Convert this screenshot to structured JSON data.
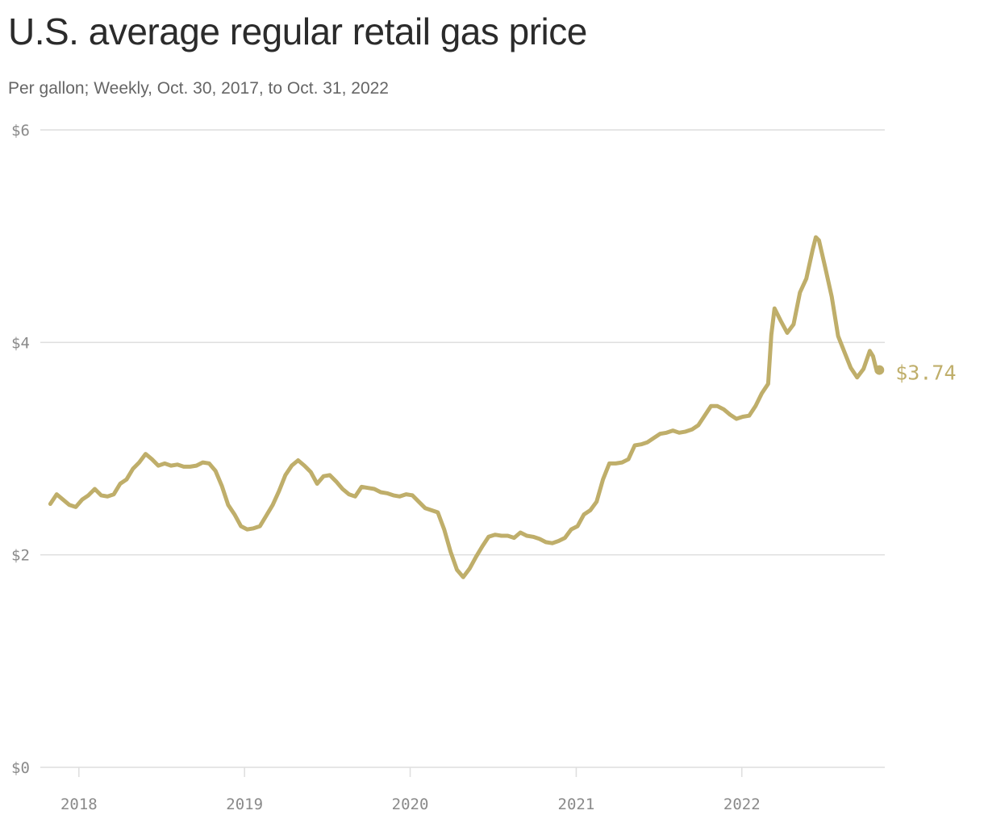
{
  "colors": {
    "line": "#bfae6a",
    "grid": "#dedede",
    "axis_text": "#8a8a8a"
  },
  "chart_data": {
    "type": "line",
    "title": "U.S. average regular retail gas price",
    "subtitle": "Per gallon; Weekly, Oct. 30, 2017, to Oct. 31, 2022",
    "xlabel": "",
    "ylabel": "",
    "ylim": [
      0,
      6
    ],
    "y_ticks": [
      0,
      2,
      4,
      6
    ],
    "y_tick_labels": [
      "$0",
      "$2",
      "$4",
      "$6"
    ],
    "x_ticks": [
      "2018-01-01",
      "2019-01-01",
      "2020-01-01",
      "2021-01-01",
      "2022-01-01"
    ],
    "x_tick_labels": [
      "2018",
      "2019",
      "2020",
      "2021",
      "2022"
    ],
    "xlim": [
      "2017-10-30",
      "2022-10-31"
    ],
    "grid": true,
    "end_label": "$3.74",
    "series": [
      {
        "name": "",
        "x": [
          "2017-10-30",
          "2017-11-13",
          "2017-11-27",
          "2017-12-11",
          "2017-12-25",
          "2018-01-08",
          "2018-01-22",
          "2018-02-05",
          "2018-02-19",
          "2018-03-05",
          "2018-03-19",
          "2018-04-02",
          "2018-04-16",
          "2018-04-30",
          "2018-05-14",
          "2018-05-28",
          "2018-06-11",
          "2018-06-25",
          "2018-07-09",
          "2018-07-23",
          "2018-08-06",
          "2018-08-20",
          "2018-09-03",
          "2018-09-17",
          "2018-10-01",
          "2018-10-15",
          "2018-10-29",
          "2018-11-12",
          "2018-11-26",
          "2018-12-10",
          "2018-12-24",
          "2019-01-07",
          "2019-01-21",
          "2019-02-04",
          "2019-02-18",
          "2019-03-04",
          "2019-03-18",
          "2019-04-01",
          "2019-04-15",
          "2019-04-29",
          "2019-05-13",
          "2019-05-27",
          "2019-06-10",
          "2019-06-24",
          "2019-07-08",
          "2019-07-22",
          "2019-08-05",
          "2019-08-19",
          "2019-09-02",
          "2019-09-16",
          "2019-09-30",
          "2019-10-14",
          "2019-10-28",
          "2019-11-11",
          "2019-11-25",
          "2019-12-09",
          "2019-12-23",
          "2020-01-06",
          "2020-01-20",
          "2020-02-03",
          "2020-02-17",
          "2020-03-02",
          "2020-03-16",
          "2020-03-30",
          "2020-04-13",
          "2020-04-27",
          "2020-05-11",
          "2020-05-25",
          "2020-06-08",
          "2020-06-22",
          "2020-07-06",
          "2020-07-20",
          "2020-08-03",
          "2020-08-17",
          "2020-08-31",
          "2020-09-14",
          "2020-09-28",
          "2020-10-12",
          "2020-10-26",
          "2020-11-09",
          "2020-11-23",
          "2020-12-07",
          "2020-12-21",
          "2021-01-04",
          "2021-01-18",
          "2021-02-01",
          "2021-02-15",
          "2021-03-01",
          "2021-03-15",
          "2021-03-29",
          "2021-04-12",
          "2021-04-26",
          "2021-05-10",
          "2021-05-24",
          "2021-06-07",
          "2021-06-21",
          "2021-07-05",
          "2021-07-19",
          "2021-08-02",
          "2021-08-16",
          "2021-08-30",
          "2021-09-13",
          "2021-09-27",
          "2021-10-11",
          "2021-10-25",
          "2021-11-08",
          "2021-11-22",
          "2021-12-06",
          "2021-12-20",
          "2022-01-03",
          "2022-01-17",
          "2022-01-31",
          "2022-02-14",
          "2022-02-28",
          "2022-03-07",
          "2022-03-14",
          "2022-03-28",
          "2022-04-11",
          "2022-04-25",
          "2022-05-09",
          "2022-05-23",
          "2022-06-06",
          "2022-06-13",
          "2022-06-20",
          "2022-07-04",
          "2022-07-18",
          "2022-08-01",
          "2022-08-15",
          "2022-08-29",
          "2022-09-12",
          "2022-09-26",
          "2022-10-10",
          "2022-10-17",
          "2022-10-24",
          "2022-10-31"
        ],
        "y": [
          2.48,
          2.57,
          2.52,
          2.47,
          2.45,
          2.52,
          2.56,
          2.62,
          2.56,
          2.55,
          2.57,
          2.67,
          2.71,
          2.81,
          2.87,
          2.95,
          2.9,
          2.84,
          2.86,
          2.84,
          2.85,
          2.83,
          2.83,
          2.84,
          2.87,
          2.86,
          2.79,
          2.65,
          2.47,
          2.38,
          2.27,
          2.24,
          2.25,
          2.27,
          2.37,
          2.47,
          2.6,
          2.75,
          2.84,
          2.89,
          2.84,
          2.78,
          2.67,
          2.74,
          2.75,
          2.69,
          2.62,
          2.57,
          2.55,
          2.64,
          2.63,
          2.62,
          2.59,
          2.58,
          2.56,
          2.55,
          2.57,
          2.56,
          2.5,
          2.44,
          2.42,
          2.4,
          2.24,
          2.03,
          1.86,
          1.79,
          1.87,
          1.98,
          2.08,
          2.17,
          2.19,
          2.18,
          2.18,
          2.16,
          2.21,
          2.18,
          2.17,
          2.15,
          2.12,
          2.11,
          2.13,
          2.16,
          2.24,
          2.27,
          2.38,
          2.42,
          2.5,
          2.71,
          2.86,
          2.86,
          2.87,
          2.9,
          3.03,
          3.04,
          3.06,
          3.1,
          3.14,
          3.15,
          3.17,
          3.15,
          3.16,
          3.18,
          3.22,
          3.31,
          3.4,
          3.4,
          3.37,
          3.32,
          3.28,
          3.3,
          3.31,
          3.4,
          3.52,
          3.61,
          4.07,
          4.32,
          4.2,
          4.09,
          4.17,
          4.47,
          4.6,
          4.87,
          4.99,
          4.96,
          4.7,
          4.43,
          4.06,
          3.91,
          3.76,
          3.67,
          3.75,
          3.92,
          3.87,
          3.75,
          3.74
        ]
      }
    ]
  }
}
